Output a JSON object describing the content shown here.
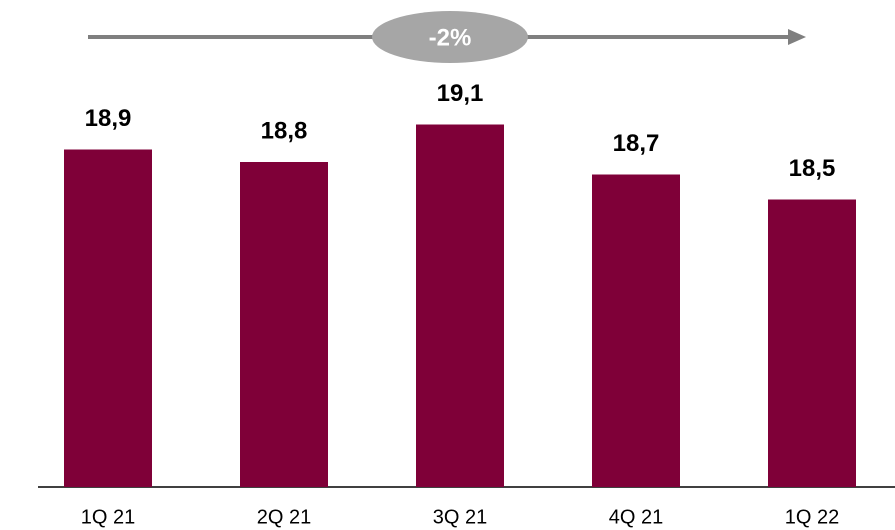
{
  "chart_data": {
    "type": "bar",
    "annotation": "-2%",
    "categories": [
      "1Q 21",
      "2Q 21",
      "3Q 21",
      "4Q 21",
      "1Q 22"
    ],
    "values": [
      18.9,
      18.8,
      19.1,
      18.7,
      18.5
    ],
    "value_labels": [
      "18,9",
      "18,8",
      "19,1",
      "18,7",
      "18,5"
    ],
    "color": "#7f0038",
    "ylim": [
      16.2,
      19.6
    ]
  }
}
